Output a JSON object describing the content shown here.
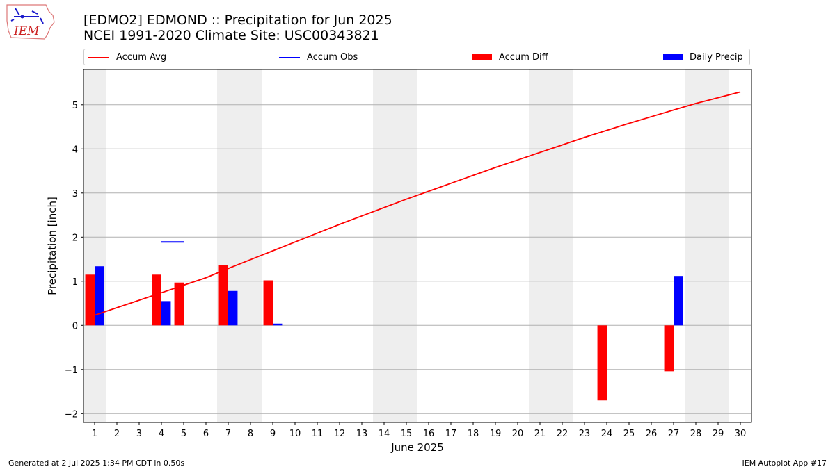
{
  "title_line1": "[EDMO2] EDMOND :: Precipitation for Jun 2025",
  "title_line2": "NCEI 1991-2020 Climate Site: USC00343821",
  "logo_text": "IEM",
  "footer_left": "Generated at 2 Jul 2025 1:34 PM CDT in 0.50s",
  "footer_right": "IEM Autoplot App #17",
  "legend": [
    {
      "label": "Accum Avg",
      "kind": "line",
      "color": "#ff0000"
    },
    {
      "label": "Accum Obs",
      "kind": "line",
      "color": "#0000ff"
    },
    {
      "label": "Accum Diff",
      "kind": "bar",
      "color": "#ff0000"
    },
    {
      "label": "Daily Precip",
      "kind": "bar",
      "color": "#0000ff"
    }
  ],
  "chart_data": {
    "type": "bar",
    "xlabel": "June 2025",
    "ylabel": "Precipitation [inch]",
    "x": [
      1,
      2,
      3,
      4,
      5,
      6,
      7,
      8,
      9,
      10,
      11,
      12,
      13,
      14,
      15,
      16,
      17,
      18,
      19,
      20,
      21,
      22,
      23,
      24,
      25,
      26,
      27,
      28,
      29,
      30
    ],
    "xlim": [
      0.5,
      30.5
    ],
    "ylim": [
      -2.2,
      5.8
    ],
    "yticks": [
      -2,
      -1,
      0,
      1,
      2,
      3,
      4,
      5
    ],
    "grid": "horizontal",
    "legend_position": "top",
    "weekend_bands": [
      [
        0.5,
        1.5
      ],
      [
        6.5,
        8.5
      ],
      [
        13.5,
        15.5
      ],
      [
        20.5,
        22.5
      ],
      [
        27.5,
        29.5
      ]
    ],
    "series": [
      {
        "name": "Accum Avg",
        "type": "line",
        "color": "#ff0000",
        "values": [
          0.23,
          0.4,
          0.57,
          0.74,
          0.91,
          1.08,
          1.29,
          1.49,
          1.69,
          1.89,
          2.09,
          2.29,
          2.48,
          2.67,
          2.86,
          3.04,
          3.22,
          3.4,
          3.58,
          3.75,
          3.92,
          4.09,
          4.26,
          4.42,
          4.58,
          4.73,
          4.88,
          5.03,
          5.16,
          5.29
        ]
      },
      {
        "name": "Accum Obs",
        "type": "segment",
        "color": "#0000ff",
        "points": [
          {
            "x": 4.5,
            "y": 1.89
          }
        ]
      },
      {
        "name": "Accum Diff",
        "type": "bar",
        "color": "#ff0000",
        "points": [
          {
            "x": 1,
            "y": 1.15
          },
          {
            "x": 4,
            "y": 1.15
          },
          {
            "x": 5,
            "y": 0.97
          },
          {
            "x": 7,
            "y": 1.36
          },
          {
            "x": 9,
            "y": 1.02
          },
          {
            "x": 24,
            "y": -1.7
          },
          {
            "x": 27,
            "y": -1.04
          }
        ]
      },
      {
        "name": "Daily Precip",
        "type": "bar",
        "color": "#0000ff",
        "points": [
          {
            "x": 1,
            "y": 1.34
          },
          {
            "x": 4,
            "y": 0.55
          },
          {
            "x": 7,
            "y": 0.78
          },
          {
            "x": 9,
            "y": 0.04
          },
          {
            "x": 27,
            "y": 1.12
          }
        ]
      }
    ]
  }
}
